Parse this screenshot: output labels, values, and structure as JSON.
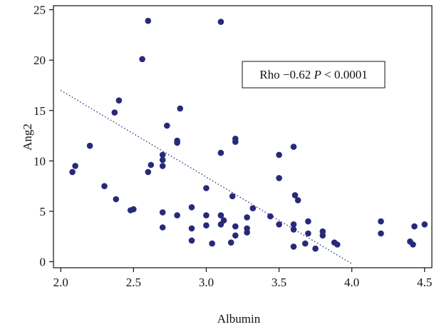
{
  "chart_data": {
    "type": "scatter",
    "title": "",
    "xlabel": "Albumin",
    "ylabel": "Ang2",
    "xlim": [
      1.95,
      4.55
    ],
    "ylim": [
      -0.6,
      25.4
    ],
    "x_ticks": [
      2.0,
      2.5,
      3.0,
      3.5,
      4.0,
      4.5
    ],
    "x_tick_labels": [
      "2.0",
      "2.5",
      "3.0",
      "3.5",
      "4.0",
      "4.5"
    ],
    "y_ticks": [
      0,
      5,
      10,
      15,
      20,
      25
    ],
    "y_tick_labels": [
      "0",
      "5",
      "10",
      "15",
      "20",
      "25"
    ],
    "grid": false,
    "point_color": "#27297a",
    "trend_color": "#27297a",
    "annotation": {
      "rho_text": "Rho −0.62",
      "p_symbol": "P",
      "p_value_text": "< 0.0001"
    },
    "trendline": {
      "x": [
        2.0,
        4.0
      ],
      "y": [
        17.0,
        -0.2
      ]
    },
    "points": [
      {
        "x": 2.08,
        "y": 8.9
      },
      {
        "x": 2.1,
        "y": 9.5
      },
      {
        "x": 2.2,
        "y": 11.5
      },
      {
        "x": 2.3,
        "y": 7.5
      },
      {
        "x": 2.37,
        "y": 14.8
      },
      {
        "x": 2.38,
        "y": 6.2
      },
      {
        "x": 2.4,
        "y": 16.0
      },
      {
        "x": 2.48,
        "y": 5.1
      },
      {
        "x": 2.5,
        "y": 5.2
      },
      {
        "x": 2.56,
        "y": 20.1
      },
      {
        "x": 2.6,
        "y": 23.9
      },
      {
        "x": 2.6,
        "y": 8.9
      },
      {
        "x": 2.62,
        "y": 9.6
      },
      {
        "x": 2.7,
        "y": 10.6
      },
      {
        "x": 2.7,
        "y": 10.1
      },
      {
        "x": 2.7,
        "y": 9.5
      },
      {
        "x": 2.7,
        "y": 4.9
      },
      {
        "x": 2.7,
        "y": 3.4
      },
      {
        "x": 2.73,
        "y": 13.5
      },
      {
        "x": 2.8,
        "y": 12.0
      },
      {
        "x": 2.8,
        "y": 11.8
      },
      {
        "x": 2.8,
        "y": 4.6
      },
      {
        "x": 2.82,
        "y": 15.2
      },
      {
        "x": 2.9,
        "y": 5.4
      },
      {
        "x": 2.9,
        "y": 3.3
      },
      {
        "x": 2.9,
        "y": 2.1
      },
      {
        "x": 3.0,
        "y": 7.3
      },
      {
        "x": 3.0,
        "y": 4.6
      },
      {
        "x": 3.0,
        "y": 3.6
      },
      {
        "x": 3.04,
        "y": 1.8
      },
      {
        "x": 3.1,
        "y": 23.8
      },
      {
        "x": 3.1,
        "y": 10.8
      },
      {
        "x": 3.1,
        "y": 4.6
      },
      {
        "x": 3.1,
        "y": 3.7
      },
      {
        "x": 3.12,
        "y": 4.1
      },
      {
        "x": 3.17,
        "y": 1.9
      },
      {
        "x": 3.18,
        "y": 6.5
      },
      {
        "x": 3.2,
        "y": 12.2
      },
      {
        "x": 3.2,
        "y": 11.9
      },
      {
        "x": 3.2,
        "y": 3.5
      },
      {
        "x": 3.2,
        "y": 2.6
      },
      {
        "x": 3.28,
        "y": 4.4
      },
      {
        "x": 3.28,
        "y": 3.3
      },
      {
        "x": 3.28,
        "y": 2.9
      },
      {
        "x": 3.32,
        "y": 5.3
      },
      {
        "x": 3.44,
        "y": 4.5
      },
      {
        "x": 3.5,
        "y": 10.6
      },
      {
        "x": 3.5,
        "y": 8.3
      },
      {
        "x": 3.5,
        "y": 3.7
      },
      {
        "x": 3.6,
        "y": 11.4
      },
      {
        "x": 3.6,
        "y": 3.7
      },
      {
        "x": 3.6,
        "y": 3.2
      },
      {
        "x": 3.6,
        "y": 1.5
      },
      {
        "x": 3.61,
        "y": 6.6
      },
      {
        "x": 3.63,
        "y": 6.1
      },
      {
        "x": 3.68,
        "y": 1.8
      },
      {
        "x": 3.7,
        "y": 4.0
      },
      {
        "x": 3.7,
        "y": 2.8
      },
      {
        "x": 3.75,
        "y": 1.3
      },
      {
        "x": 3.8,
        "y": 3.0
      },
      {
        "x": 3.8,
        "y": 2.6
      },
      {
        "x": 3.88,
        "y": 1.9
      },
      {
        "x": 3.9,
        "y": 1.7
      },
      {
        "x": 4.2,
        "y": 4.0
      },
      {
        "x": 4.2,
        "y": 2.8
      },
      {
        "x": 4.4,
        "y": 2.0
      },
      {
        "x": 4.42,
        "y": 1.7
      },
      {
        "x": 4.43,
        "y": 3.5
      },
      {
        "x": 4.5,
        "y": 3.7
      }
    ]
  }
}
